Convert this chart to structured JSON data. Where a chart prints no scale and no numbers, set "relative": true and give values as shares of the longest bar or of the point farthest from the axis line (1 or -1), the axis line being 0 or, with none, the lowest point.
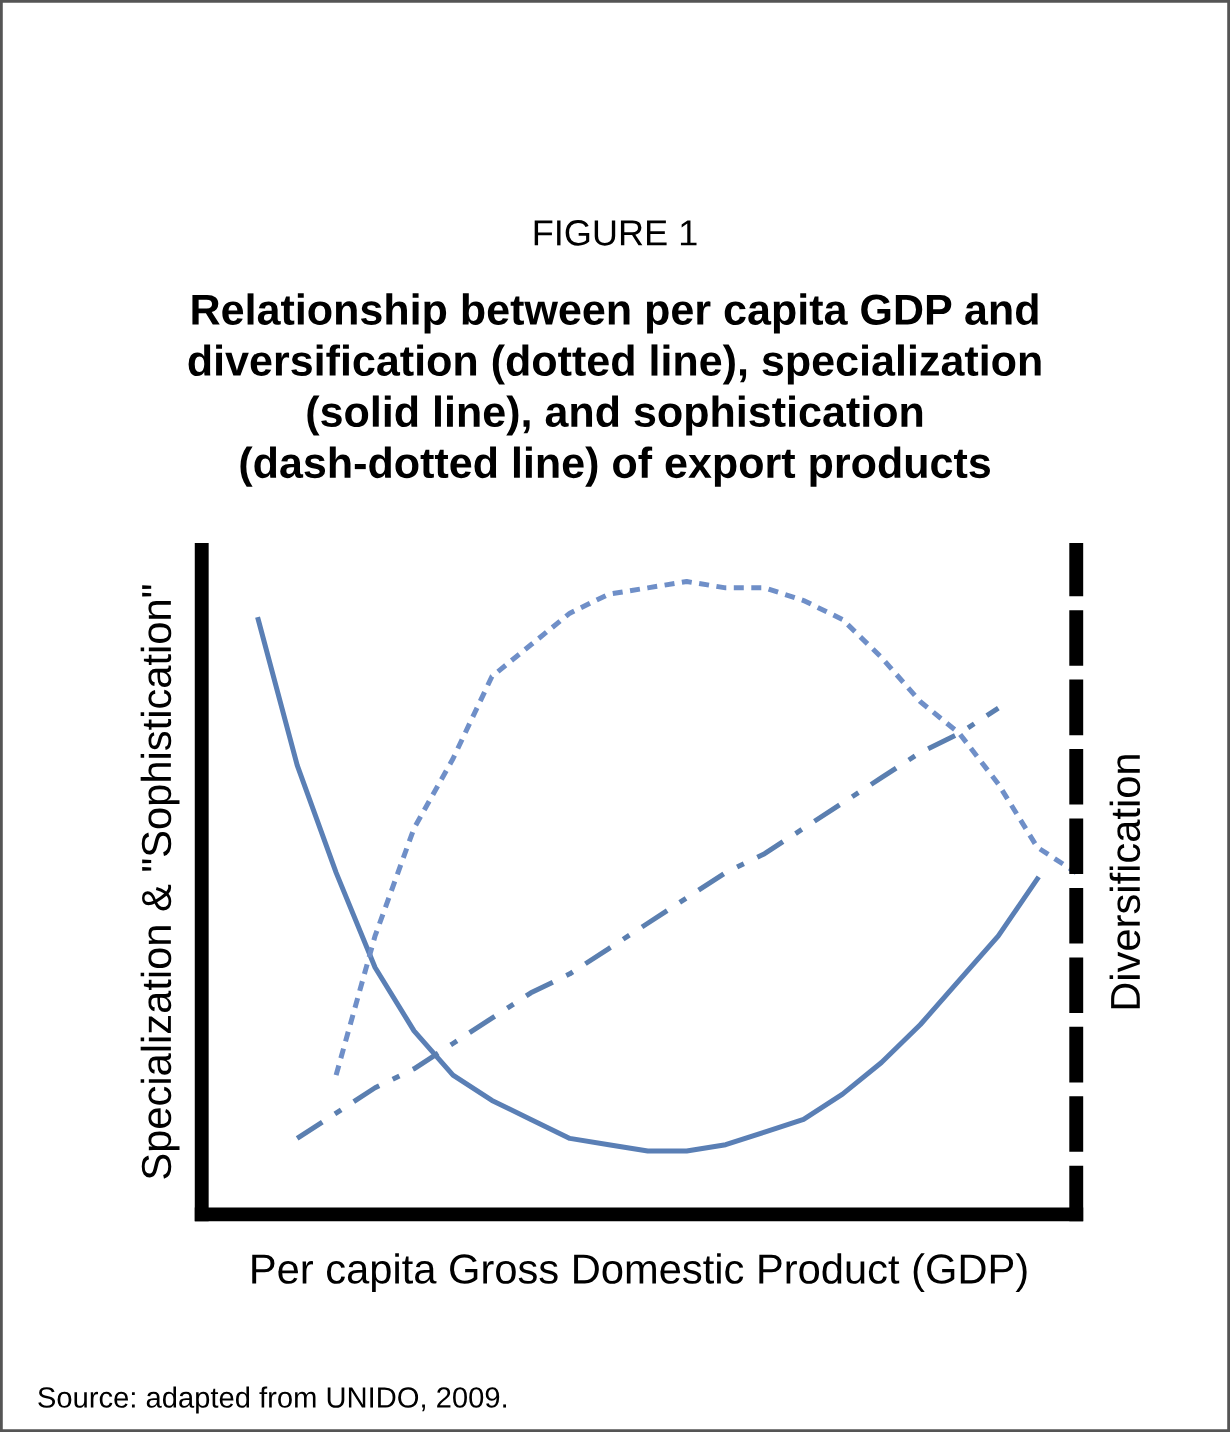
{
  "chart_data": {
    "type": "line",
    "relative": true,
    "title": "FIGURE 1",
    "subtitle": "Relationship between per capita GDP and\ndiversification (dotted line), specialization\n(solid line), and sophistication\n(dash-dotted line) of export products",
    "xlabel": "Per capita Gross Domestic Product (GDP)",
    "ylabel": "Specialization & \"Sophistication\"",
    "y2label": "Diversification",
    "annotations": [
      "Source: adapted from UNIDO, 2009."
    ],
    "categories": [
      null,
      null,
      null,
      null,
      null,
      null,
      null,
      null,
      null,
      null,
      null,
      null,
      null,
      null,
      null,
      null,
      null,
      null,
      null,
      null,
      null,
      null
    ],
    "series": [
      {
        "color": "#5a7fb5",
        "line_style": "solid",
        "values": [
          0.94,
          0.71,
          0.54,
          0.39,
          0.29,
          0.22,
          0.18,
          0.15,
          0.12,
          0.11,
          0.1,
          0.1,
          0.11,
          0.13,
          0.15,
          0.19,
          0.24,
          0.3,
          0.37,
          0.44,
          0.53,
          null
        ]
      },
      {
        "color": "#6f8fc8",
        "line_style": "dotted",
        "values": [
          null,
          null,
          0.22,
          0.44,
          0.61,
          0.72,
          0.85,
          0.9,
          0.95,
          0.98,
          0.99,
          1.0,
          0.99,
          0.99,
          0.97,
          0.94,
          0.88,
          0.81,
          0.76,
          0.68,
          0.58,
          0.54
        ]
      },
      {
        "color": "#5b7fb0",
        "line_style": "dashdot",
        "values": [
          null,
          0.12,
          0.16,
          0.2,
          0.23,
          0.27,
          0.31,
          0.35,
          0.38,
          0.42,
          0.46,
          0.5,
          0.54,
          0.57,
          0.61,
          0.65,
          0.69,
          0.73,
          0.76,
          0.8,
          null,
          null
        ]
      }
    ],
    "grid": false,
    "legend": false,
    "tick_labels": false
  }
}
